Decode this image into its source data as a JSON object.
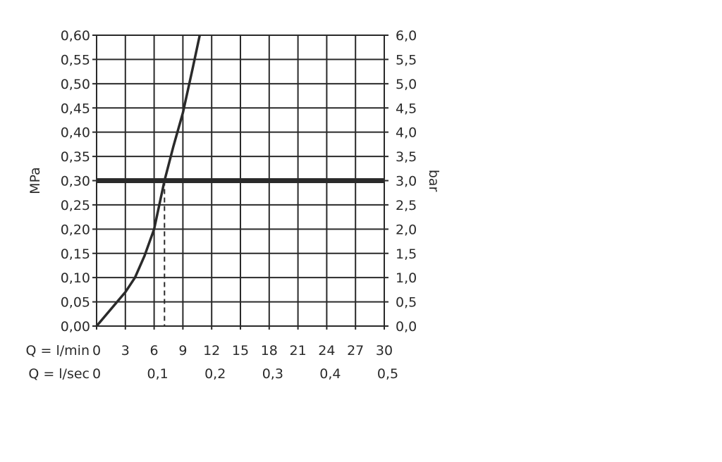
{
  "chart_data": {
    "type": "line",
    "left_axis": {
      "label": "MPa",
      "range": [
        0,
        0.6
      ],
      "ticks": [
        "0,00",
        "0,05",
        "0,10",
        "0,15",
        "0,20",
        "0,25",
        "0,30",
        "0,35",
        "0,40",
        "0,45",
        "0,50",
        "0,55",
        "0,60"
      ]
    },
    "right_axis": {
      "label": "bar",
      "range": [
        0,
        6
      ],
      "ticks": [
        "0,0",
        "0,5",
        "1,0",
        "1,5",
        "2,0",
        "2,5",
        "3,0",
        "3,5",
        "4,0",
        "4,5",
        "5,0",
        "5,5",
        "6,0"
      ]
    },
    "x_axis": {
      "range": [
        0,
        30
      ],
      "row1_label": "Q = l/min",
      "row1_ticks": [
        {
          "v": 0,
          "t": "0"
        },
        {
          "v": 3,
          "t": "3"
        },
        {
          "v": 6,
          "t": "6"
        },
        {
          "v": 9,
          "t": "9"
        },
        {
          "v": 12,
          "t": "12"
        },
        {
          "v": 15,
          "t": "15"
        },
        {
          "v": 18,
          "t": "18"
        },
        {
          "v": 21,
          "t": "21"
        },
        {
          "v": 24,
          "t": "24"
        },
        {
          "v": 27,
          "t": "27"
        },
        {
          "v": 30,
          "t": "30"
        }
      ],
      "row2_label": "Q = l/sec",
      "row2_ticks": [
        {
          "v": 0,
          "t": "0"
        },
        {
          "v": 6,
          "t": "0,1"
        },
        {
          "v": 12,
          "t": "0,2"
        },
        {
          "v": 18,
          "t": "0,3"
        },
        {
          "v": 24,
          "t": "0,4"
        },
        {
          "v": 30,
          "t": "0,5"
        }
      ]
    },
    "grid": true,
    "series": [
      {
        "x": [
          0,
          1.5,
          3,
          4,
          5,
          6,
          7.08,
          8,
          9,
          10,
          10.76
        ],
        "y": [
          0,
          0.035,
          0.07,
          0.1,
          0.145,
          0.2,
          0.3,
          0.37,
          0.44,
          0.53,
          0.6
        ],
        "color": "#2a2a2a"
      }
    ],
    "reference_line": {
      "y": 0.3
    },
    "marker_line": {
      "x": 7.08
    },
    "colors": {
      "ink": "#2a2a2a",
      "background": "#ffffff"
    }
  }
}
